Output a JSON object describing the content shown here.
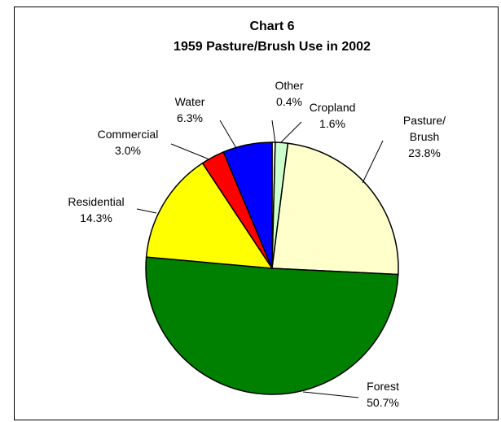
{
  "chart_data": {
    "type": "pie",
    "title": "Chart 6",
    "subtitle": "1959 Pasture/Brush Use in 2002",
    "slices": [
      {
        "name": "Other",
        "value": 0.4,
        "label_lines": [
          "Other"
        ],
        "pct": "0.4%",
        "color": "#ffffff"
      },
      {
        "name": "Cropland",
        "value": 1.6,
        "label_lines": [
          "Cropland"
        ],
        "pct": "1.6%",
        "color": "#ccffcc"
      },
      {
        "name": "Pasture/Brush",
        "value": 23.8,
        "label_lines": [
          "Pasture/",
          "Brush"
        ],
        "pct": "23.8%",
        "color": "#ffffcc"
      },
      {
        "name": "Forest",
        "value": 50.7,
        "label_lines": [
          "Forest"
        ],
        "pct": "50.7%",
        "color": "#008000"
      },
      {
        "name": "Residential",
        "value": 14.3,
        "label_lines": [
          "Residential"
        ],
        "pct": "14.3%",
        "color": "#ffff00"
      },
      {
        "name": "Commercial",
        "value": 3.0,
        "label_lines": [
          "Commercial"
        ],
        "pct": "3.0%",
        "color": "#ff0000"
      },
      {
        "name": "Water",
        "value": 6.3,
        "label_lines": [
          "Water"
        ],
        "pct": "6.3%",
        "color": "#0000ff"
      }
    ]
  }
}
